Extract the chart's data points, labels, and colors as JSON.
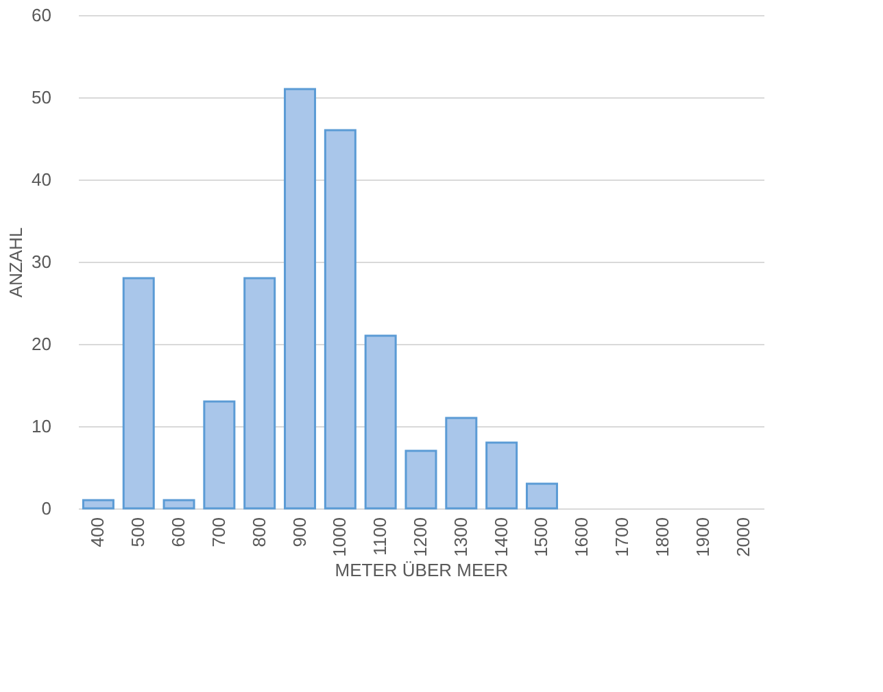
{
  "chart_data": {
    "type": "bar",
    "xlabel": "METER ÜBER MEER",
    "ylabel": "ANZAHL",
    "categories": [
      "400",
      "500",
      "600",
      "700",
      "800",
      "900",
      "1000",
      "1100",
      "1200",
      "1300",
      "1400",
      "1500",
      "1600",
      "1700",
      "1800",
      "1900",
      "2000"
    ],
    "values": [
      1,
      28,
      1,
      13,
      28,
      51,
      46,
      21,
      7,
      11,
      8,
      3,
      0,
      0,
      0,
      0,
      0
    ],
    "color": "#a9c6ea",
    "ylim": [
      0,
      60
    ],
    "yticks": [
      0,
      10,
      20,
      30,
      40,
      50,
      60
    ],
    "grid": "y"
  }
}
